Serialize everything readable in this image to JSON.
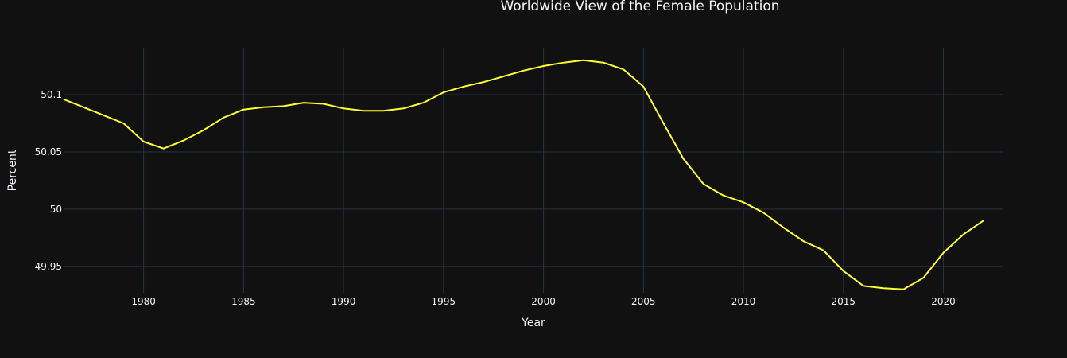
{
  "chart_data": {
    "type": "line",
    "title": "Worldwide View of the Female Population",
    "xlabel": "Year",
    "ylabel": "Percent",
    "xlim": [
      1976,
      2023
    ],
    "ylim": [
      49.927,
      50.141
    ],
    "x_ticks": [
      1980,
      1985,
      1990,
      1995,
      2000,
      2005,
      2010,
      2015,
      2020
    ],
    "y_ticks": [
      49.95,
      50,
      50.05,
      50.1
    ],
    "y_tick_labels": [
      "49.95",
      "50",
      "50.05",
      "50.1"
    ],
    "grid": true,
    "line_color": "#ffff33",
    "series": [
      {
        "x": [
          1976,
          1977,
          1978,
          1979,
          1980,
          1981,
          1982,
          1983,
          1984,
          1985,
          1986,
          1987,
          1988,
          1989,
          1990,
          1991,
          1992,
          1993,
          1994,
          1995,
          1996,
          1997,
          1998,
          1999,
          2000,
          2001,
          2002,
          2003,
          2004,
          2005,
          2006,
          2007,
          2008,
          2009,
          2010,
          2011,
          2012,
          2013,
          2014,
          2015,
          2016,
          2017,
          2018,
          2019,
          2020,
          2021,
          2022
        ],
        "values": [
          50.096,
          50.089,
          50.082,
          50.075,
          50.059,
          50.053,
          50.06,
          50.069,
          50.08,
          50.087,
          50.089,
          50.09,
          50.093,
          50.092,
          50.088,
          50.086,
          50.086,
          50.088,
          50.093,
          50.102,
          50.107,
          50.111,
          50.116,
          50.121,
          50.125,
          50.128,
          50.13,
          50.128,
          50.122,
          50.107,
          50.075,
          50.044,
          50.022,
          50.012,
          50.006,
          49.997,
          49.984,
          49.972,
          49.964,
          49.946,
          49.933,
          49.931,
          49.93,
          49.94,
          49.962,
          49.978,
          49.99
        ]
      }
    ]
  }
}
